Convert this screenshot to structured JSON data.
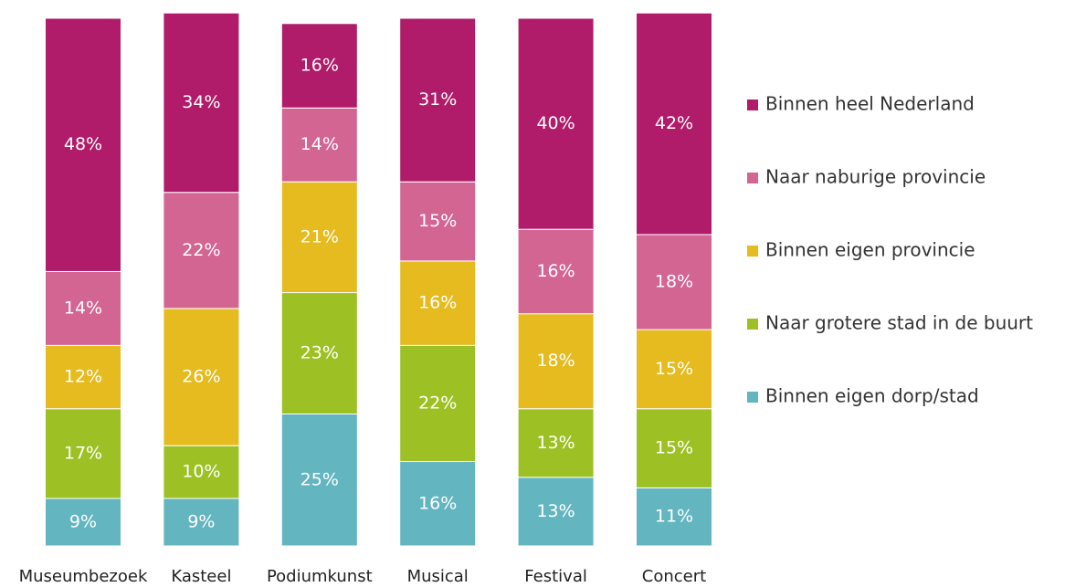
{
  "chart_data": {
    "type": "stacked_bar",
    "categories": [
      "Museumbezoek",
      "Kasteel",
      "Podiumkunst",
      "Musical",
      "Festival",
      "Concert"
    ],
    "ylim": [
      0,
      100
    ],
    "legend": "right",
    "series": [
      {
        "name": "Binnen eigen dorp/stad",
        "color": "#63b5c0",
        "values": [
          9,
          9,
          25,
          16,
          13,
          11
        ],
        "value_labels": [
          "9%",
          "9%",
          "25%",
          "16%",
          "13%",
          "11%"
        ]
      },
      {
        "name": "Naar grotere stad in de buurt",
        "color": "#9dc124",
        "values": [
          17,
          10,
          23,
          22,
          13,
          15
        ],
        "value_labels": [
          "17%",
          "10%",
          "23%",
          "22%",
          "13%",
          "15%"
        ]
      },
      {
        "name": "Binnen eigen provincie",
        "color": "#e5bb1f",
        "values": [
          12,
          26,
          21,
          16,
          18,
          15
        ],
        "value_labels": [
          "12%",
          "26%",
          "21%",
          "16%",
          "18%",
          "15%"
        ]
      },
      {
        "name": "Naar naburige provincie",
        "color": "#d36593",
        "values": [
          14,
          22,
          14,
          15,
          16,
          18
        ],
        "value_labels": [
          "14%",
          "22%",
          "14%",
          "15%",
          "16%",
          "18%"
        ]
      },
      {
        "name": "Binnen heel Nederland",
        "color": "#b01c6a",
        "values": [
          48,
          34,
          16,
          31,
          40,
          42
        ],
        "value_labels": [
          "48%",
          "34%",
          "16%",
          "31%",
          "40%",
          "42%"
        ]
      }
    ]
  }
}
